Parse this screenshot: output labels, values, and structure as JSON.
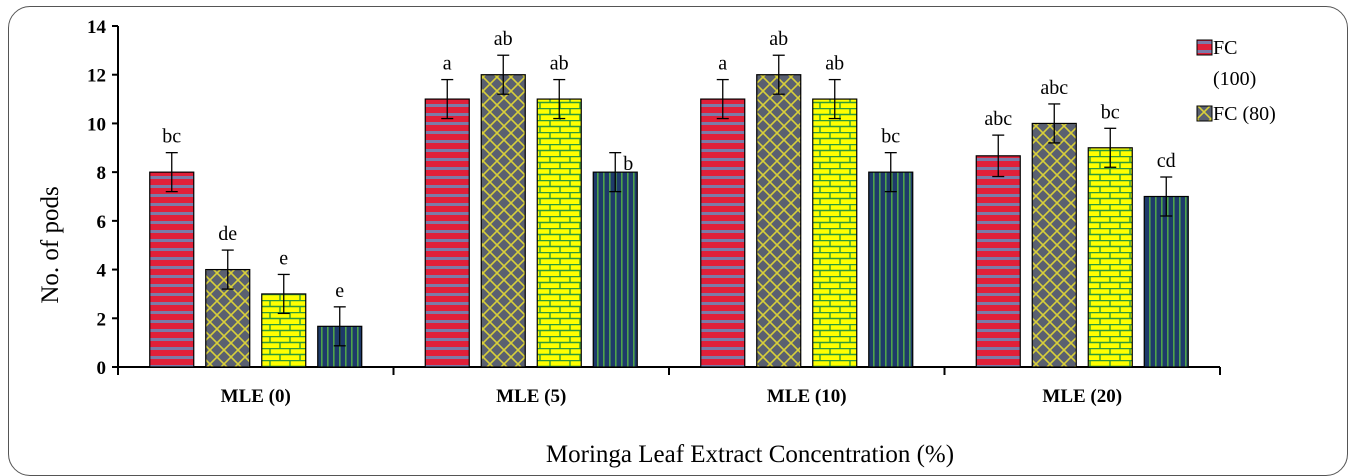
{
  "chart_data": {
    "type": "bar",
    "ylabel": "No. of pods",
    "xlabel": "Moringa Leaf Extract Concentration (%)",
    "ylim": [
      0,
      14
    ],
    "yticks": [
      0,
      2,
      4,
      6,
      8,
      10,
      12,
      14
    ],
    "categories": [
      "MLE (0)",
      "MLE (5)",
      "MLE (10)",
      "MLE (20)"
    ],
    "series": [
      {
        "name": "FC (100)",
        "color": "#e0203a",
        "pattern": "horizontal-stripes",
        "values": [
          8,
          11,
          11,
          8.67
        ],
        "errors": [
          0.8,
          0.8,
          0.8,
          0.85
        ],
        "labels": [
          "bc",
          "a",
          "a",
          "abc"
        ]
      },
      {
        "name": "FC (80)",
        "color": "#5a6070",
        "pattern": "yellow-crosshatch",
        "values": [
          4,
          12,
          12,
          10
        ],
        "errors": [
          0.8,
          0.8,
          0.8,
          0.8
        ],
        "labels": [
          "de",
          "ab",
          "ab",
          "abc"
        ]
      },
      {
        "color": "#ffff00",
        "pattern": "green-brick",
        "values": [
          3,
          11,
          11,
          9
        ],
        "errors": [
          0.8,
          0.8,
          0.8,
          0.8
        ],
        "labels": [
          "e",
          "ab",
          "ab",
          "bc"
        ]
      },
      {
        "color": "#1e3a6a",
        "pattern": "green-vertical-stripes",
        "values": [
          1.67,
          8,
          8,
          7
        ],
        "errors": [
          0.8,
          0.8,
          0.8,
          0.8
        ],
        "labels": [
          "e",
          "b",
          "bc",
          "cd"
        ]
      }
    ],
    "legend": {
      "position": "right",
      "entries": [
        "FC",
        "(100)",
        "FC (80)"
      ]
    },
    "grid": false
  }
}
